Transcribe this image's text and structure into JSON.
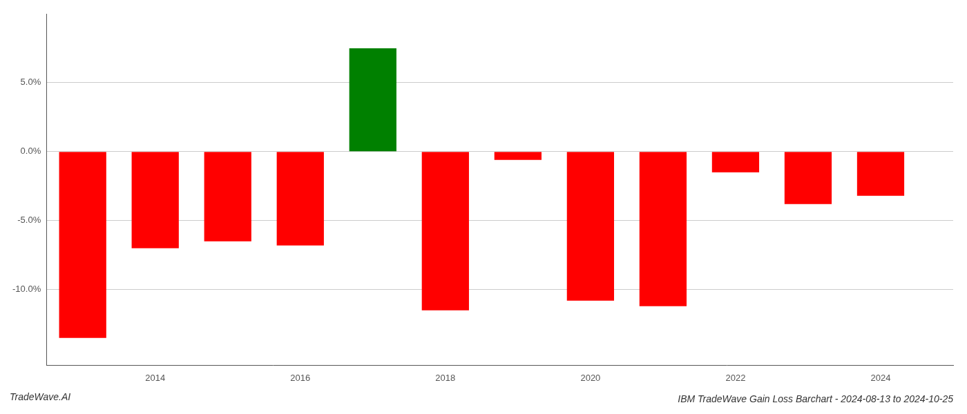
{
  "chart_data": {
    "type": "bar",
    "title": "IBM TradeWave Gain Loss Barchart - 2024-08-13 to 2024-10-25",
    "annotations": [
      "TradeWave.AI"
    ],
    "x": [
      2013,
      2014,
      2015,
      2016,
      2017,
      2018,
      2019,
      2020,
      2021,
      2022,
      2023,
      2024
    ],
    "values": [
      -13.5,
      -7.0,
      -6.5,
      -6.8,
      7.5,
      -11.5,
      -0.6,
      -10.8,
      -11.2,
      -1.5,
      -3.8,
      -3.2
    ],
    "colors": [
      "#ff0000",
      "#ff0000",
      "#ff0000",
      "#ff0000",
      "#008000",
      "#ff0000",
      "#ff0000",
      "#ff0000",
      "#ff0000",
      "#ff0000",
      "#ff0000",
      "#ff0000"
    ],
    "xlim": [
      2012.5,
      2025.0
    ],
    "xticks": [
      2014,
      2016,
      2018,
      2020,
      2022,
      2024
    ],
    "ylim": [
      -15.5,
      10.0
    ],
    "yticks": [
      {
        "value": -10.0,
        "label": "-10.0%"
      },
      {
        "value": -5.0,
        "label": "-5.0%"
      },
      {
        "value": 0.0,
        "label": "0.0%"
      },
      {
        "value": 5.0,
        "label": "5.0%"
      }
    ],
    "grid": true
  }
}
